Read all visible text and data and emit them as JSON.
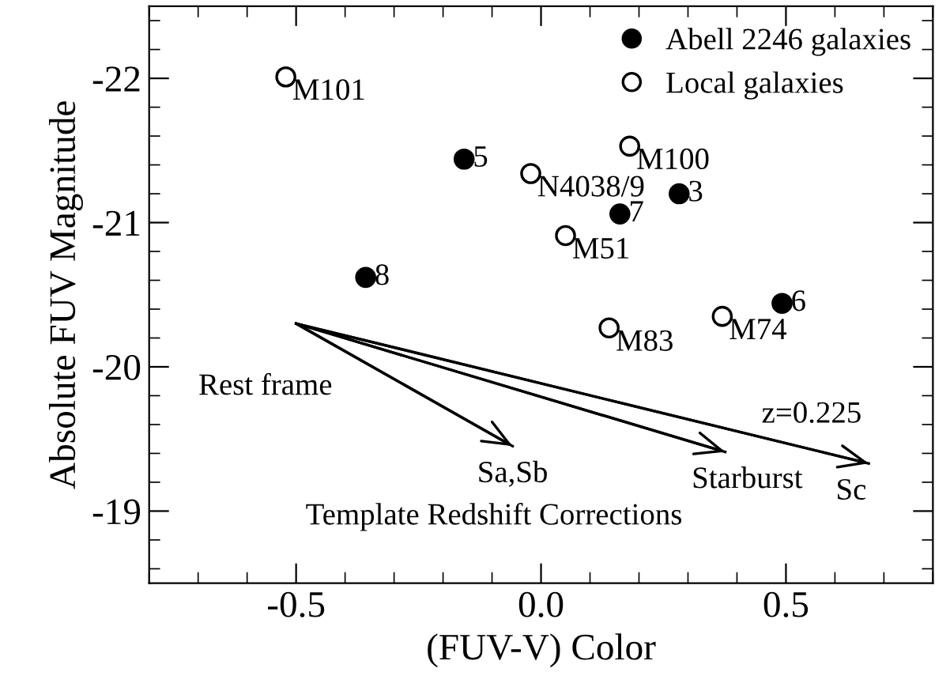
{
  "chart_data": {
    "type": "scatter",
    "xlabel": "(FUV-V) Color",
    "ylabel": "Absolute FUV Magnitude",
    "xlim": [
      -0.8,
      0.8
    ],
    "xticks": [
      {
        "value": -0.5,
        "label": "-0.5"
      },
      {
        "value": 0.0,
        "label": "0.0"
      },
      {
        "value": 0.5,
        "label": "0.5"
      }
    ],
    "ylim": [
      -18.5,
      -22.5
    ],
    "yticks": [
      -22,
      -21,
      -20,
      -19
    ],
    "grid": false,
    "legend": "top right",
    "series": [
      {
        "name": "Abell 2246 galaxies",
        "marker": "circle",
        "color": "#000000",
        "x": [
          -0.157,
          -0.358,
          0.282,
          0.161,
          0.492
        ],
        "values": [
          -21.44,
          -20.62,
          -21.2,
          -21.06,
          -20.44
        ]
      },
      {
        "name": "Local galaxies",
        "marker": "circle",
        "color": "#ffffff",
        "x": [
          -0.521,
          -0.021,
          0.181,
          0.05,
          0.37,
          0.139
        ],
        "values": [
          -22.01,
          -21.34,
          -21.53,
          -20.91,
          -20.35,
          -20.27
        ]
      },
      {
        "type": "line",
        "marker": "none",
        "color": "#000000",
        "x": [
          -0.5,
          -0.058
        ],
        "values": [
          -20.3,
          -19.45
        ]
      },
      {
        "type": "line",
        "marker": "none",
        "color": "#000000",
        "x": [
          -0.5,
          0.376
        ],
        "values": [
          -20.3,
          -19.41
        ]
      },
      {
        "type": "line",
        "marker": "none",
        "color": "#000000",
        "x": [
          -0.5,
          0.669
        ],
        "values": [
          -20.3,
          -19.33
        ]
      }
    ],
    "annotations": [
      {
        "text": "5",
        "x": -0.157,
        "y": -21.44
      },
      {
        "text": "8",
        "x": -0.358,
        "y": -20.62
      },
      {
        "text": "3",
        "x": 0.282,
        "y": -21.2
      },
      {
        "text": "7",
        "x": 0.161,
        "y": -21.06
      },
      {
        "text": "6",
        "x": 0.492,
        "y": -20.44
      },
      {
        "text": "M101",
        "x": -0.521,
        "y": -22.01
      },
      {
        "text": "N4038/9",
        "x": -0.021,
        "y": -21.34
      },
      {
        "text": "M100",
        "x": 0.181,
        "y": -21.53
      },
      {
        "text": "M51",
        "x": 0.05,
        "y": -20.91
      },
      {
        "text": "M74",
        "x": 0.37,
        "y": -20.35
      },
      {
        "text": "M83",
        "x": 0.139,
        "y": -20.27
      },
      {
        "text": "Rest frame",
        "x": -0.5,
        "y": -20.3
      },
      {
        "text": "z=0.225",
        "x": 0.669,
        "y": -19.33
      },
      {
        "text": "Sa,Sb",
        "x": -0.058,
        "y": -19.45
      },
      {
        "text": "Starburst",
        "x": 0.376,
        "y": -19.41
      },
      {
        "text": "Sc",
        "x": 0.669,
        "y": -19.33
      },
      "Template Redshift Corrections"
    ]
  }
}
